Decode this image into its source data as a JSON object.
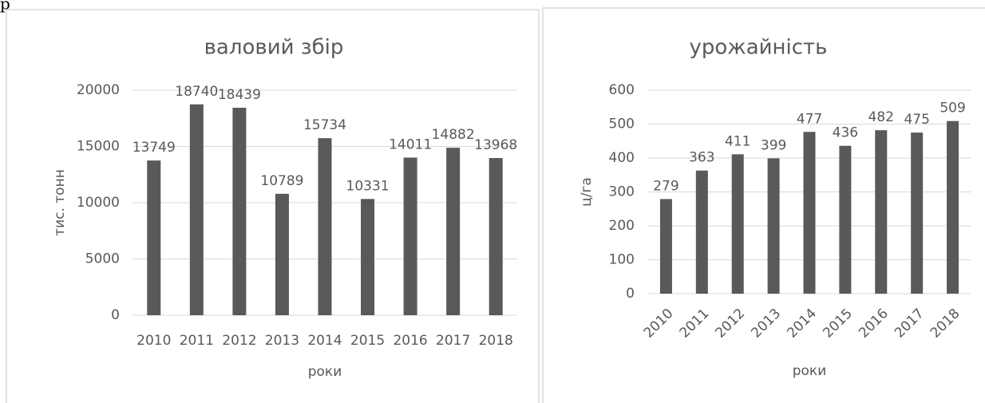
{
  "page_text": "р",
  "chart_data": [
    {
      "type": "bar",
      "title": "валовий збір",
      "x_label": "роки",
      "y_label": "тис. тонн",
      "categories": [
        "2010",
        "2011",
        "2012",
        "2013",
        "2014",
        "2015",
        "2016",
        "2017",
        "2018"
      ],
      "values": [
        13749,
        18740,
        18439,
        10789,
        15734,
        10331,
        14011,
        14882,
        13968
      ],
      "color": "#595959",
      "ylim": [
        0,
        20000
      ],
      "yticks": [
        0,
        5000,
        10000,
        15000,
        20000
      ],
      "grid": true
    },
    {
      "type": "bar",
      "title": "урожайність",
      "x_label": "роки",
      "y_label": "ц/га",
      "categories": [
        "2010",
        "2011",
        "2012",
        "2013",
        "2014",
        "2015",
        "2016",
        "2017",
        "2018"
      ],
      "values": [
        279,
        363,
        411,
        399,
        477,
        436,
        482,
        475,
        509
      ],
      "color": "#595959",
      "ylim": [
        0,
        600
      ],
      "yticks": [
        0,
        100,
        200,
        300,
        400,
        500,
        600
      ],
      "grid": true
    }
  ]
}
